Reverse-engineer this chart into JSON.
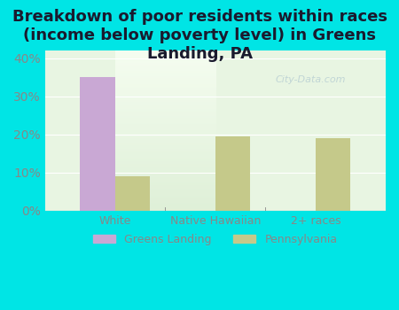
{
  "title": "Breakdown of poor residents within races\n(income below poverty level) in Greens\nLanding, PA",
  "categories": [
    "White",
    "Native Hawaiian",
    "2+ races"
  ],
  "greens_landing_values": [
    35.0,
    0.0,
    0.0
  ],
  "pennsylvania_values": [
    9.0,
    19.5,
    19.0
  ],
  "greens_landing_color": "#c9a8d4",
  "pennsylvania_color": "#c5c98a",
  "background_color": "#00e5e5",
  "chart_bg_color_top": "#e8f5e2",
  "chart_bg_color_bottom": "#f0faf0",
  "ylim": [
    0,
    42
  ],
  "yticks": [
    0,
    10,
    20,
    30,
    40
  ],
  "ytick_labels": [
    "0%",
    "10%",
    "20%",
    "30%",
    "40%"
  ],
  "title_fontsize": 13,
  "tick_color": "#888888",
  "bar_width": 0.35,
  "legend_greens_landing": "Greens Landing",
  "legend_pennsylvania": "Pennsylvania",
  "watermark": "City-Data.com"
}
